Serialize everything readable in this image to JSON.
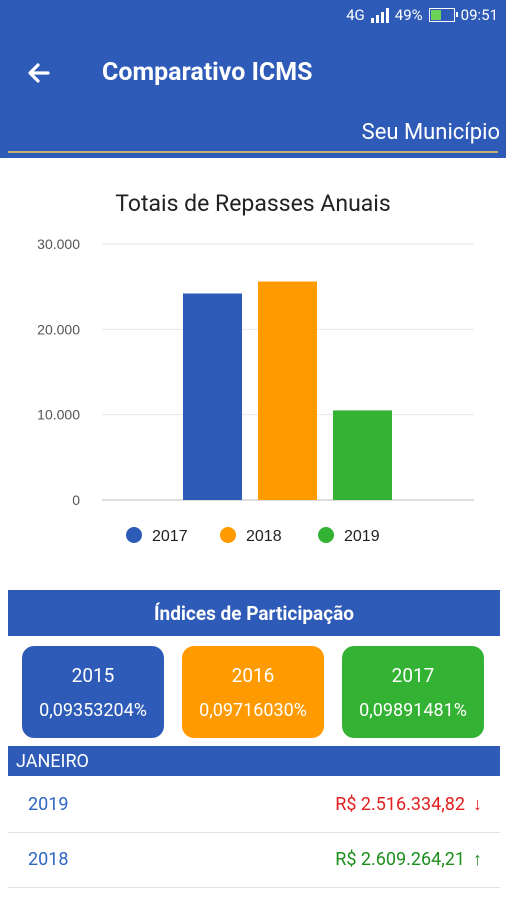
{
  "status_bar": {
    "network": "4G",
    "battery": "49%",
    "time": "09:51"
  },
  "app_bar": {
    "title": "Comparativo ICMS",
    "subtitle": "Seu Município"
  },
  "chart_data": {
    "type": "bar",
    "title": "Totais de Repasses Anuais",
    "categories": [
      "2017",
      "2018",
      "2019"
    ],
    "values": [
      24200,
      25600,
      10500
    ],
    "colors": [
      "#2f5bb8",
      "#ff9a00",
      "#34b233"
    ],
    "ylim": [
      0,
      30000
    ],
    "yticks": [
      "0",
      "10.000",
      "20.000",
      "30.000"
    ],
    "legend": {
      "position": "bottom",
      "entries": [
        "2017",
        "2018",
        "2019"
      ]
    },
    "grid": true
  },
  "indices": {
    "header": "Índices de Participação",
    "cards": [
      {
        "year": "2015",
        "value": "0,09353204%",
        "color": "#2f5bb8"
      },
      {
        "year": "2016",
        "value": "0,09716030%",
        "color": "#ff9a00"
      },
      {
        "year": "2017",
        "value": "0,09891481%",
        "color": "#34b233"
      }
    ]
  },
  "month": {
    "label": "JANEIRO",
    "rows": [
      {
        "year": "2019",
        "value": "R$ 2.516.334,82",
        "trend": "down",
        "color": "#e41e1e"
      },
      {
        "year": "2018",
        "value": "R$ 2.609.264,21",
        "trend": "up",
        "color": "#1d8f1d"
      }
    ]
  }
}
